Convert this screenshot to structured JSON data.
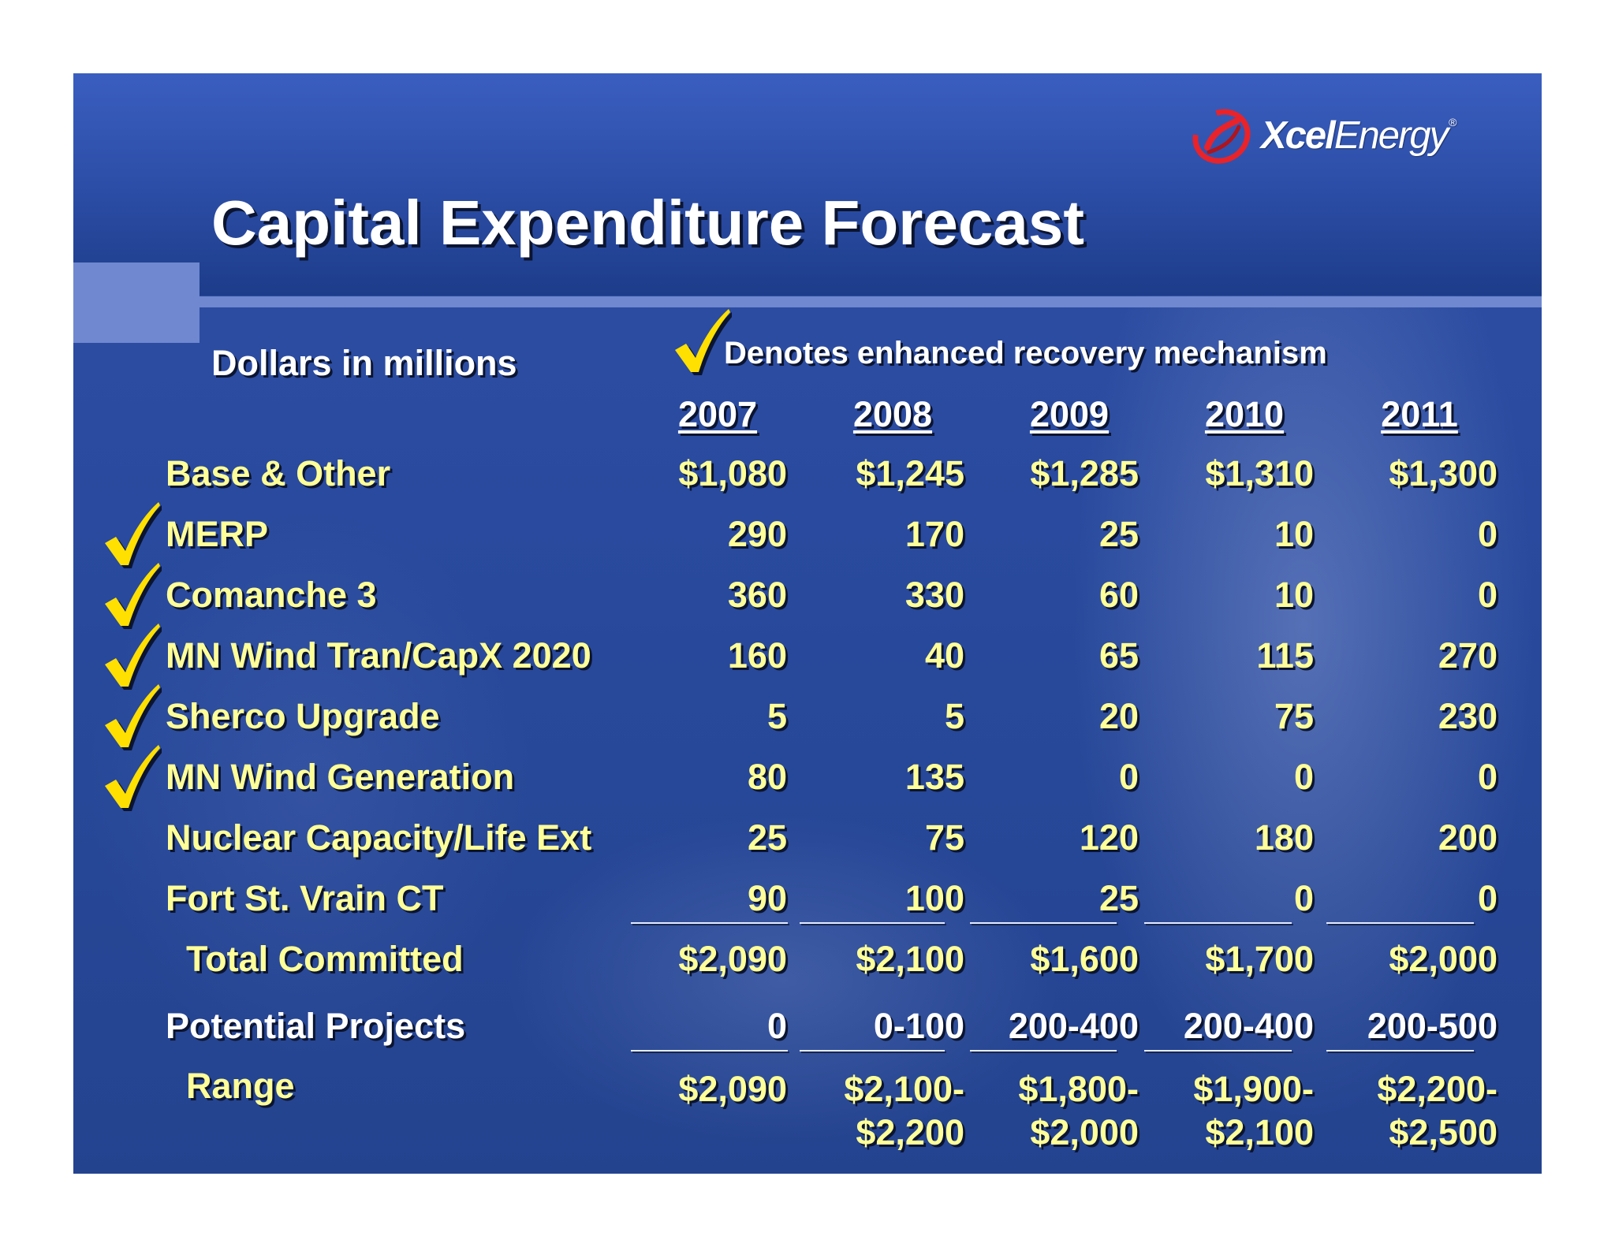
{
  "logo": {
    "bold": "Xcel",
    "light": "Energy",
    "mark": "®"
  },
  "title": "Capital Expenditure Forecast",
  "units_label": "Dollars in millions",
  "legend": {
    "icon": "check-icon",
    "text": "Denotes enhanced recovery mechanism"
  },
  "colors": {
    "label_text": "#ffff99",
    "check": "#ffe000",
    "logo_swirl": "#e8232a"
  },
  "years": [
    "2007",
    "2008",
    "2009",
    "2010",
    "2011"
  ],
  "rows": [
    {
      "label": "Base & Other",
      "enhanced": false,
      "values": [
        "$1,080",
        "$1,245",
        "$1,285",
        "$1,310",
        "$1,300"
      ]
    },
    {
      "label": "MERP",
      "enhanced": true,
      "values": [
        "290",
        "170",
        "25",
        "10",
        "0"
      ]
    },
    {
      "label": "Comanche 3",
      "enhanced": true,
      "values": [
        "360",
        "330",
        "60",
        "10",
        "0"
      ]
    },
    {
      "label": "MN Wind Tran/CapX 2020",
      "enhanced": true,
      "values": [
        "160",
        "40",
        "65",
        "115",
        "270"
      ]
    },
    {
      "label": "Sherco Upgrade",
      "enhanced": true,
      "values": [
        "5",
        "5",
        "20",
        "75",
        "230"
      ]
    },
    {
      "label": "MN Wind Generation",
      "enhanced": true,
      "values": [
        "80",
        "135",
        "0",
        "0",
        "0"
      ]
    },
    {
      "label": "Nuclear Capacity/Life Ext",
      "enhanced": false,
      "values": [
        "25",
        "75",
        "120",
        "180",
        "200"
      ]
    },
    {
      "label": "Fort St. Vrain CT",
      "enhanced": false,
      "values": [
        "90",
        "100",
        "25",
        "0",
        "0"
      ]
    }
  ],
  "total_committed": {
    "label": "Total Committed",
    "values": [
      "$2,090",
      "$2,100",
      "$1,600",
      "$1,700",
      "$2,000"
    ]
  },
  "potential_projects": {
    "label": "Potential Projects",
    "values": [
      "0",
      "0-100",
      "200-400",
      "200-400",
      "200-500"
    ]
  },
  "range": {
    "label": "Range",
    "values": [
      [
        "$2,090"
      ],
      [
        "$2,100-",
        "$2,200"
      ],
      [
        "$1,800-",
        "$2,000"
      ],
      [
        "$1,900-",
        "$2,100"
      ],
      [
        "$2,200-",
        "$2,500"
      ]
    ]
  }
}
